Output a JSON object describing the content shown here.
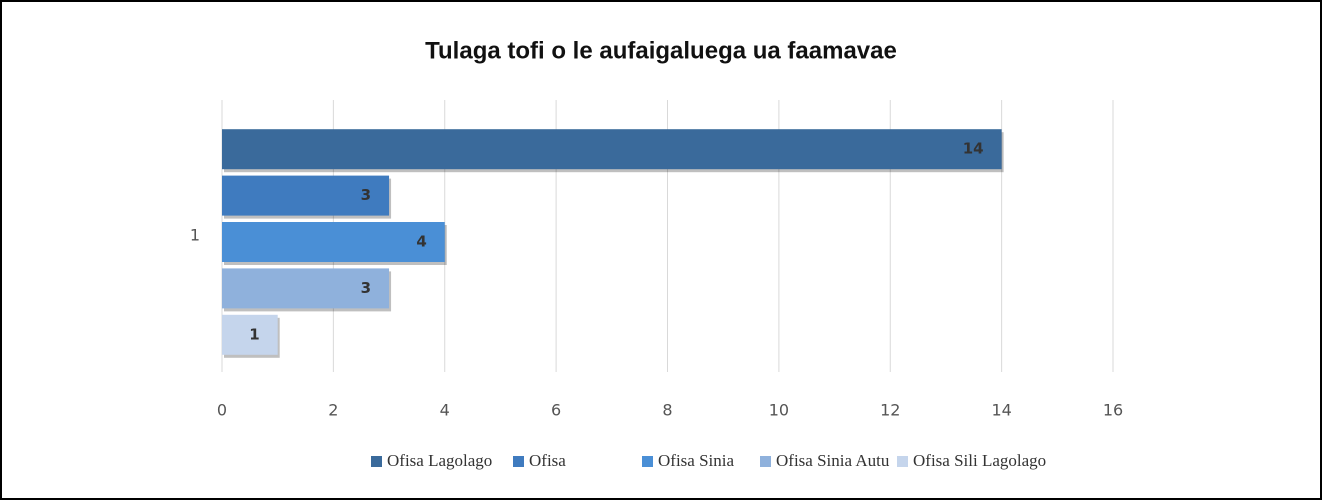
{
  "chart_data": {
    "type": "bar",
    "orientation": "horizontal",
    "title": "Tulaga tofi o le aufaigaluega ua faamavae",
    "categories": [
      "1"
    ],
    "series": [
      {
        "name": "Ofisa Lagolago",
        "color": "#3a6a9b",
        "values": [
          14
        ]
      },
      {
        "name": "Ofisa",
        "color": "#3f7bbf",
        "values": [
          3
        ]
      },
      {
        "name": "Ofisa Sinia",
        "color": "#4a8fd6",
        "values": [
          4
        ]
      },
      {
        "name": "Ofisa Sinia Autu",
        "color": "#8fb1dc",
        "values": [
          3
        ]
      },
      {
        "name": "Ofisa Sili Lagolago",
        "color": "#c5d5ec",
        "values": [
          1
        ]
      }
    ],
    "xlim": [
      0,
      16
    ],
    "xticks": [
      0,
      2,
      4,
      6,
      8,
      10,
      12,
      14,
      16
    ],
    "grid": true,
    "legend": "bottom"
  }
}
